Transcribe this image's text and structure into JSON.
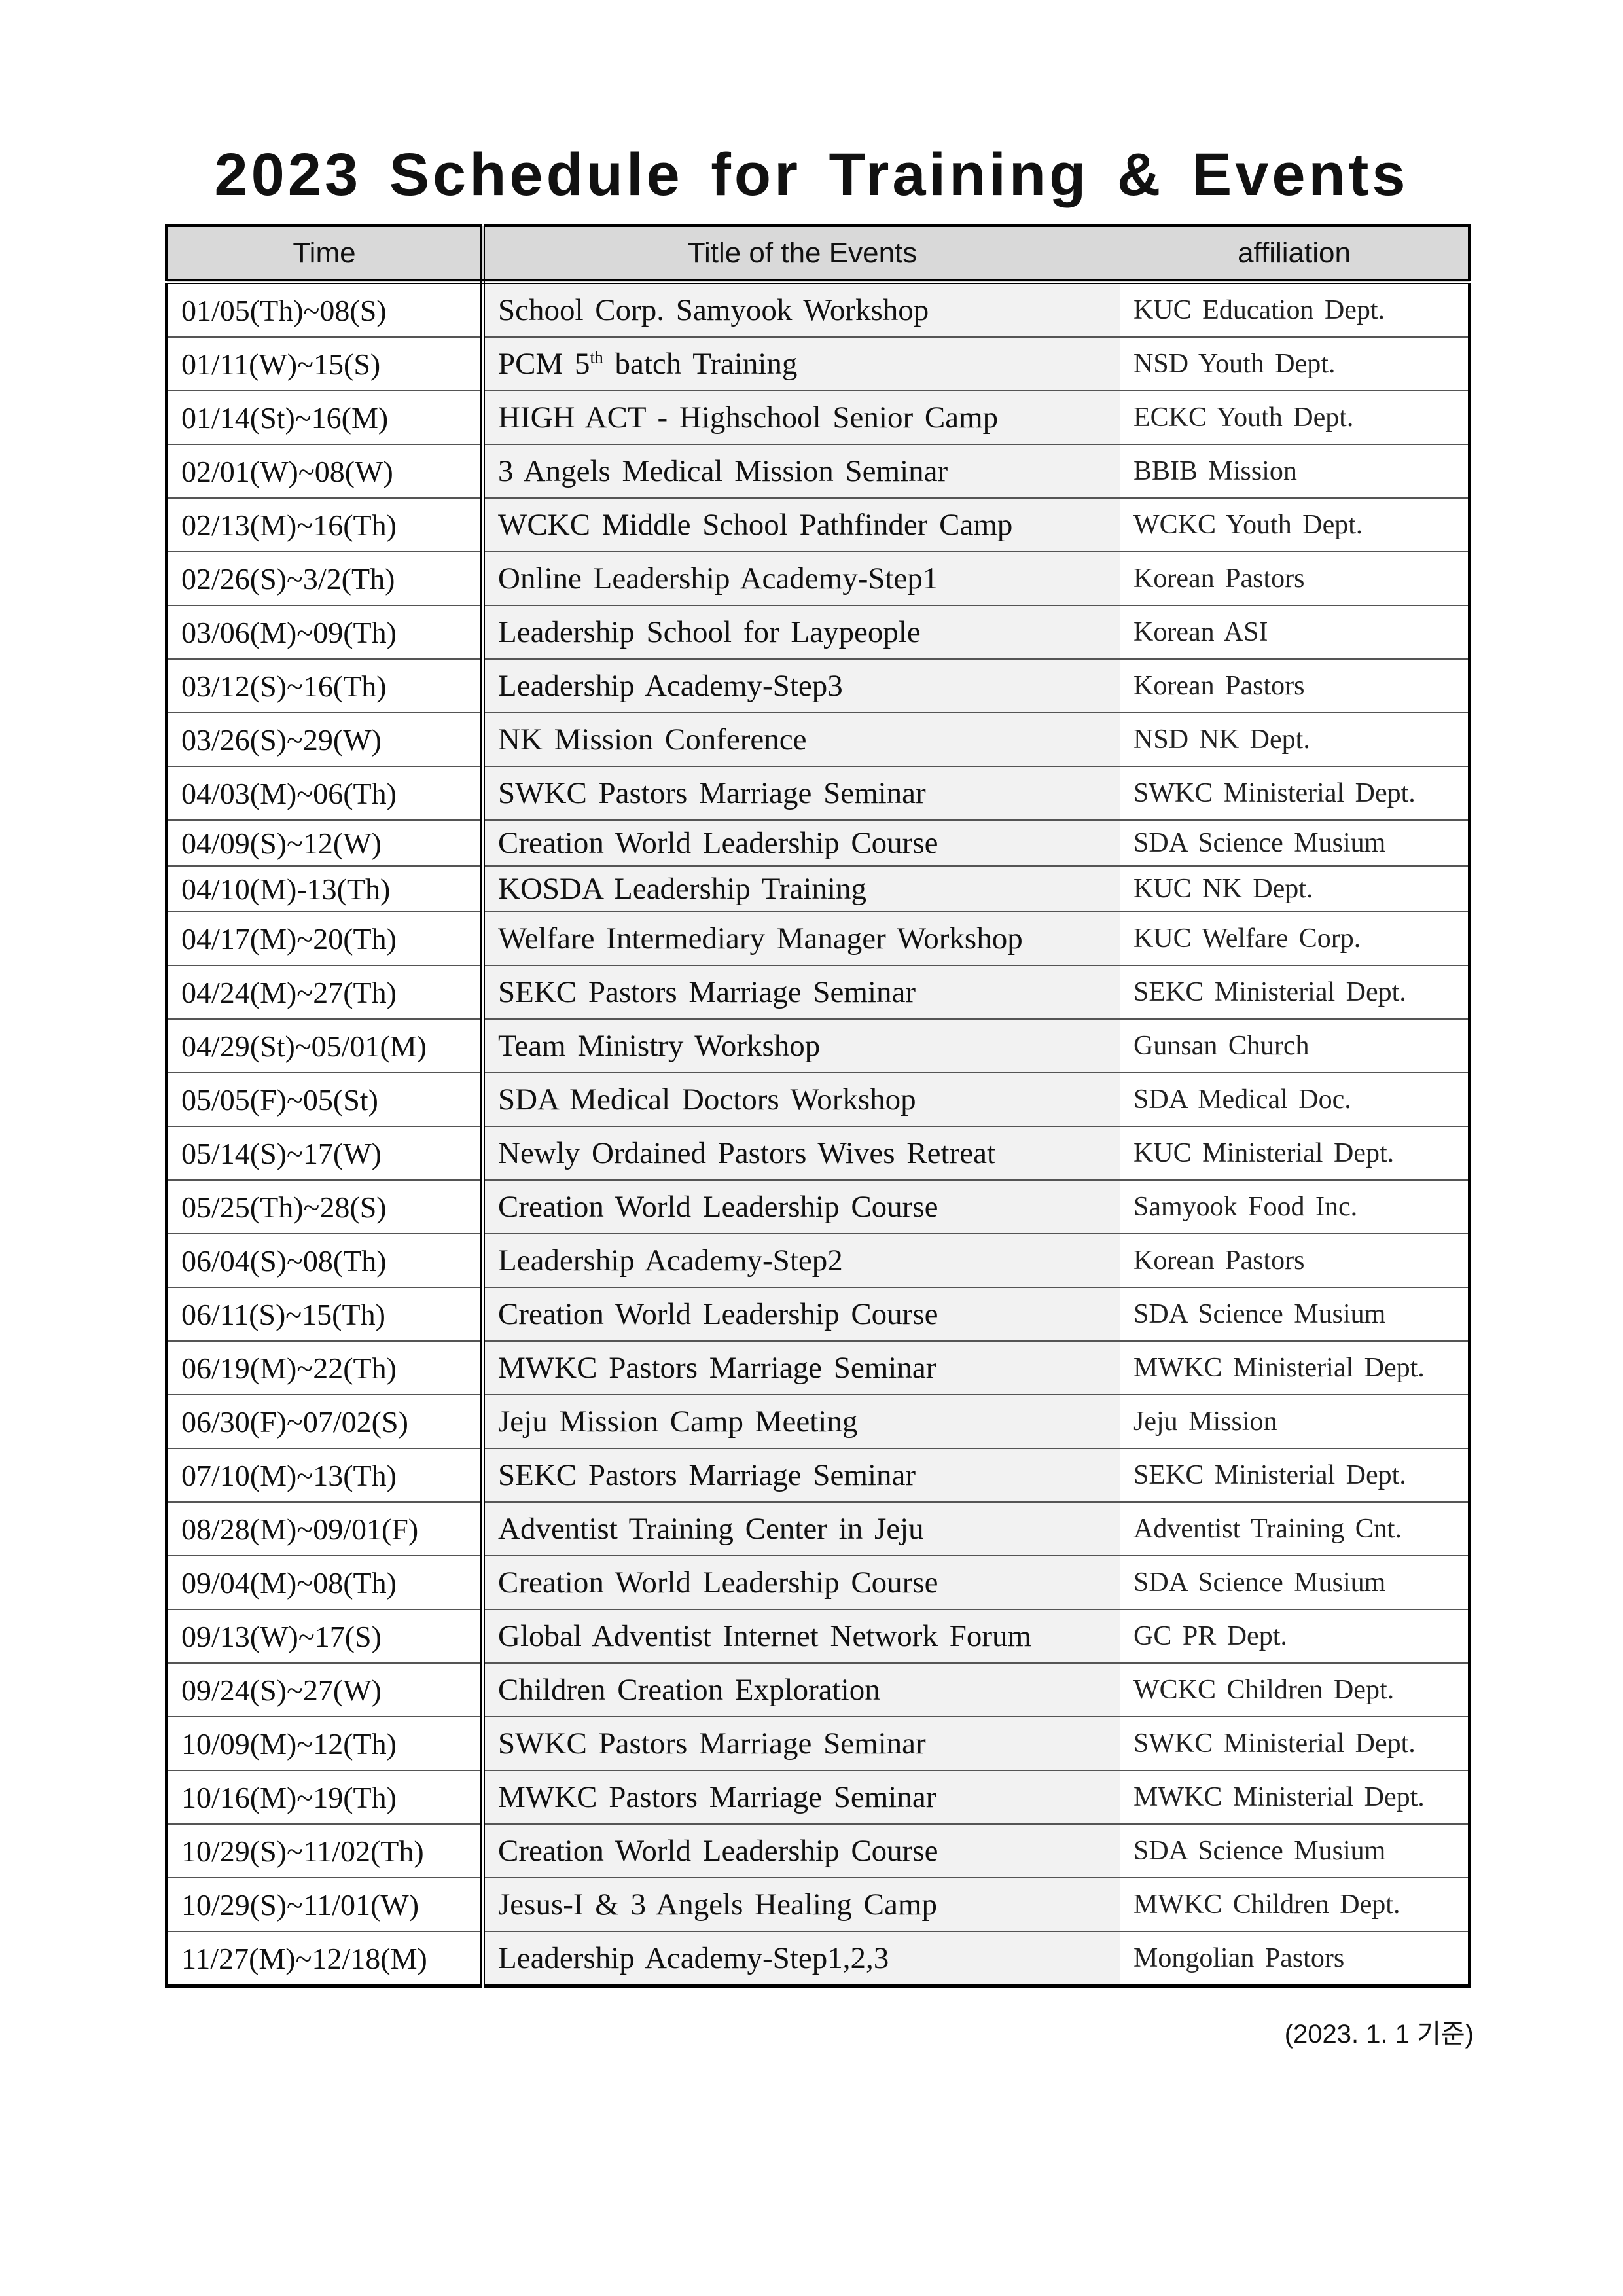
{
  "title": "2023 Schedule for Training & Events",
  "table": {
    "headers": [
      "Time",
      "Title of the Events",
      "affiliation"
    ],
    "rows": [
      {
        "time": "01/05(Th)~08(S)",
        "title": "School Corp. Samyook Workshop",
        "affiliation": "KUC Education Dept."
      },
      {
        "time": "01/11(W)~15(S)",
        "title": "PCM 5",
        "title_sup": "th",
        "title_rest": " batch Training",
        "affiliation": "NSD Youth Dept."
      },
      {
        "time": "01/14(St)~16(M)",
        "title": "HIGH ACT - Highschool Senior Camp",
        "affiliation": "ECKC Youth Dept."
      },
      {
        "time": "02/01(W)~08(W)",
        "title": "3 Angels Medical Mission Seminar",
        "affiliation": "BBIB Mission"
      },
      {
        "time": "02/13(M)~16(Th)",
        "title": "WCKC Middle School Pathfinder Camp",
        "affiliation": "WCKC Youth Dept."
      },
      {
        "time": "02/26(S)~3/2(Th)",
        "title": "Online Leadership Academy-Step1",
        "affiliation": "Korean Pastors"
      },
      {
        "time": "03/06(M)~09(Th)",
        "title": "Leadership School for Laypeople",
        "affiliation": "Korean ASI"
      },
      {
        "time": "03/12(S)~16(Th)",
        "title": "Leadership Academy-Step3",
        "affiliation": "Korean Pastors"
      },
      {
        "time": "03/26(S)~29(W)",
        "title": "NK Mission Conference",
        "affiliation": "NSD NK Dept."
      },
      {
        "time": "04/03(M)~06(Th)",
        "title": "SWKC Pastors Marriage Seminar",
        "affiliation": "SWKC Ministerial Dept."
      },
      {
        "time": "04/09(S)~12(W)",
        "title": "Creation World Leadership Course",
        "affiliation": "SDA Science Musium"
      },
      {
        "time": "04/10(M)-13(Th)",
        "title": "KOSDA Leadership Training",
        "affiliation": "KUC NK Dept."
      },
      {
        "time": "04/17(M)~20(Th)",
        "title": "Welfare Intermediary Manager Workshop",
        "affiliation": "KUC Welfare Corp."
      },
      {
        "time": "04/24(M)~27(Th)",
        "title": "SEKC Pastors Marriage Seminar",
        "affiliation": "SEKC Ministerial Dept."
      },
      {
        "time": "04/29(St)~05/01(M)",
        "title": "Team Ministry Workshop",
        "affiliation": "Gunsan Church"
      },
      {
        "time": "05/05(F)~05(St)",
        "title": "SDA Medical Doctors Workshop",
        "affiliation": "SDA Medical Doc."
      },
      {
        "time": "05/14(S)~17(W)",
        "title": "Newly Ordained Pastors Wives Retreat",
        "affiliation": "KUC Ministerial Dept."
      },
      {
        "time": "05/25(Th)~28(S)",
        "title": "Creation World Leadership Course",
        "affiliation": "Samyook Food Inc."
      },
      {
        "time": "06/04(S)~08(Th)",
        "title": "Leadership Academy-Step2",
        "affiliation": "Korean Pastors"
      },
      {
        "time": "06/11(S)~15(Th)",
        "title": "Creation World Leadership Course",
        "affiliation": "SDA Science Musium"
      },
      {
        "time": "06/19(M)~22(Th)",
        "title": "MWKC Pastors Marriage Seminar",
        "affiliation": "MWKC Ministerial Dept."
      },
      {
        "time": "06/30(F)~07/02(S)",
        "title": "Jeju Mission Camp Meeting",
        "affiliation": "Jeju Mission"
      },
      {
        "time": "07/10(M)~13(Th)",
        "title": "SEKC Pastors Marriage Seminar",
        "affiliation": "SEKC Ministerial Dept."
      },
      {
        "time": "08/28(M)~09/01(F)",
        "title": "Adventist Training Center in Jeju",
        "affiliation": "Adventist Training Cnt."
      },
      {
        "time": "09/04(M)~08(Th)",
        "title": "Creation World Leadership Course",
        "affiliation": "SDA Science Musium"
      },
      {
        "time": "09/13(W)~17(S)",
        "title": "Global Adventist Internet Network Forum",
        "affiliation": "GC PR Dept."
      },
      {
        "time": "09/24(S)~27(W)",
        "title": "Children Creation Exploration",
        "affiliation": "WCKC Children Dept."
      },
      {
        "time": "10/09(M)~12(Th)",
        "title": "SWKC Pastors Marriage Seminar",
        "affiliation": "SWKC Ministerial Dept."
      },
      {
        "time": "10/16(M)~19(Th)",
        "title": "MWKC Pastors Marriage Seminar",
        "affiliation": "MWKC Ministerial Dept."
      },
      {
        "time": "10/29(S)~11/02(Th)",
        "title": "Creation World Leadership Course",
        "affiliation": "SDA Science Musium"
      },
      {
        "time": "10/29(S)~11/01(W)",
        "title": "Jesus-I & 3 Angels Healing Camp",
        "affiliation": "MWKC Children Dept."
      },
      {
        "time": "11/27(M)~12/18(M)",
        "title": "Leadership Academy-Step1,2,3",
        "affiliation": "Mongolian Pastors"
      }
    ]
  },
  "note": "(2023. 1. 1 기준)"
}
